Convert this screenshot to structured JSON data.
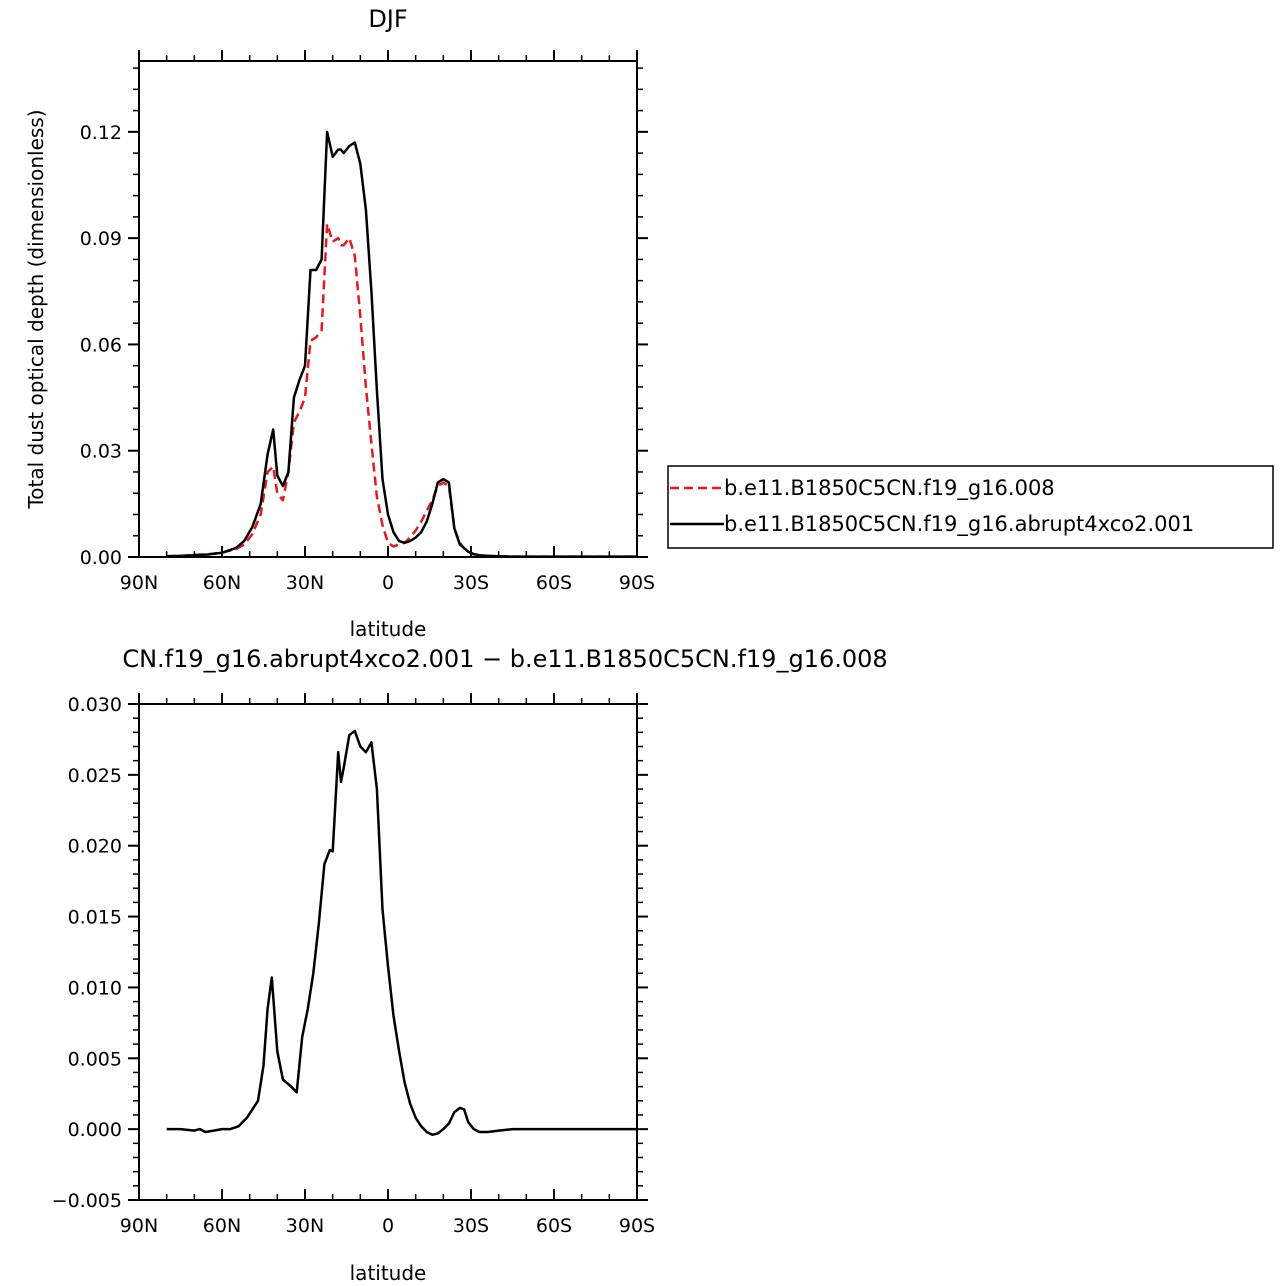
{
  "chart_data": [
    {
      "type": "line",
      "title": "DJF",
      "xlabel": "latitude",
      "ylabel": "Total dust optical depth (dimensionless)",
      "xlim": [
        90,
        -90
      ],
      "ylim": [
        0,
        0.14
      ],
      "x_ticks": [
        90,
        60,
        30,
        0,
        -30,
        -60,
        -90
      ],
      "x_tick_labels": [
        "90N",
        "60N",
        "30N",
        "0",
        "30S",
        "60S",
        "90S"
      ],
      "y_ticks": [
        0,
        0.03,
        0.06,
        0.09,
        0.12
      ],
      "y_tick_labels": [
        "0.00",
        "0.03",
        "0.06",
        "0.09",
        "0.12"
      ],
      "legend_position": "right",
      "grid": false,
      "series": [
        {
          "name": "b.e11.B1850C5CN.f19_g16.008",
          "color": "#e41a1c",
          "dash": "dashed",
          "x": [
            80,
            75,
            70,
            65,
            60,
            55,
            52,
            49,
            46,
            43.5,
            41.5,
            40,
            38,
            36,
            34,
            32,
            30,
            28,
            26,
            24,
            22,
            20,
            18,
            17,
            16,
            14,
            12,
            10,
            8,
            6,
            4,
            2,
            0,
            -2,
            -4,
            -6,
            -8,
            -10,
            -12,
            -14,
            -16,
            -18,
            -20,
            -22,
            -24,
            -26,
            -27.5,
            -29,
            -31,
            -33,
            -36,
            -40,
            -45,
            -50,
            -60,
            -70,
            -80,
            -90
          ],
          "y": [
            0.0002,
            0.0003,
            0.0006,
            0.0008,
            0.0012,
            0.0022,
            0.0035,
            0.0065,
            0.012,
            0.024,
            0.0255,
            0.018,
            0.016,
            0.024,
            0.038,
            0.041,
            0.045,
            0.061,
            0.062,
            0.064,
            0.094,
            0.089,
            0.09,
            0.088,
            0.088,
            0.09,
            0.085,
            0.068,
            0.048,
            0.032,
            0.017,
            0.009,
            0.004,
            0.003,
            0.0035,
            0.004,
            0.0055,
            0.0075,
            0.01,
            0.013,
            0.016,
            0.02,
            0.021,
            0.02,
            0.008,
            0.004,
            0.0025,
            0.0015,
            0.0008,
            0.0005,
            0.0003,
            0.0002,
            0.0001,
            0.0001,
            0.0001,
            0.0001,
            0.0001,
            0.0001
          ]
        },
        {
          "name": "b.e11.B1850C5CN.f19_g16.abrupt4xco2.001",
          "color": "#000000",
          "dash": "solid",
          "x": [
            80,
            75,
            70,
            65,
            60,
            55,
            52,
            49,
            46,
            43.5,
            41.5,
            40,
            38,
            36,
            34,
            32,
            30,
            28,
            26,
            24,
            22,
            20,
            18,
            17,
            16,
            14,
            12,
            10,
            8,
            6,
            4,
            2,
            0,
            -2,
            -4,
            -6,
            -8,
            -10,
            -12,
            -14,
            -16,
            -18,
            -20,
            -22,
            -24,
            -26,
            -27.5,
            -29,
            -31,
            -33,
            -36,
            -40,
            -45,
            -50,
            -60,
            -70,
            -80,
            -90
          ],
          "y": [
            0.0002,
            0.0003,
            0.0005,
            0.0007,
            0.0012,
            0.0025,
            0.0045,
            0.0085,
            0.015,
            0.029,
            0.036,
            0.023,
            0.02,
            0.024,
            0.045,
            0.05,
            0.054,
            0.081,
            0.081,
            0.084,
            0.12,
            0.113,
            0.115,
            0.115,
            0.114,
            0.116,
            0.117,
            0.111,
            0.098,
            0.075,
            0.047,
            0.022,
            0.012,
            0.007,
            0.0045,
            0.004,
            0.0045,
            0.0055,
            0.007,
            0.01,
            0.015,
            0.021,
            0.022,
            0.021,
            0.008,
            0.0035,
            0.0025,
            0.0015,
            0.0008,
            0.0005,
            0.0003,
            0.0002,
            0.0001,
            0.0001,
            0.0001,
            0.0001,
            0.0001,
            0.0001
          ]
        }
      ]
    },
    {
      "type": "line",
      "title": "CN.f19_g16.abrupt4xco2.001 − b.e11.B1850C5CN.f19_g16.008",
      "xlabel": "latitude",
      "xlim": [
        90,
        -90
      ],
      "ylim": [
        -0.005,
        0.03
      ],
      "x_ticks": [
        90,
        60,
        30,
        0,
        -30,
        -60,
        -90
      ],
      "x_tick_labels": [
        "90N",
        "60N",
        "30N",
        "0",
        "30S",
        "60S",
        "90S"
      ],
      "y_ticks": [
        -0.005,
        0,
        0.005,
        0.01,
        0.015,
        0.02,
        0.025,
        0.03
      ],
      "y_tick_labels": [
        "−0.005",
        "0.000",
        "0.005",
        "0.010",
        "0.015",
        "0.020",
        "0.025",
        "0.030"
      ],
      "grid": false,
      "series": [
        {
          "color": "#000000",
          "dash": "solid",
          "x": [
            80,
            75,
            70,
            68,
            66,
            63,
            60,
            57,
            54,
            51,
            49,
            47,
            45,
            43.5,
            42,
            40,
            38,
            35,
            33,
            31,
            29,
            27,
            25,
            23,
            21,
            20,
            18,
            17,
            16,
            14,
            12,
            10,
            8,
            6,
            4,
            2,
            0,
            -2,
            -4,
            -6,
            -8,
            -10,
            -12,
            -14,
            -16,
            -18,
            -20,
            -22,
            -24,
            -26,
            -27.5,
            -29,
            -31,
            -33,
            -36,
            -40,
            -45,
            -50,
            -60,
            -70,
            -80,
            -90
          ],
          "y": [
            0.0,
            0.0,
            -0.0001,
            0.0,
            -0.0002,
            -0.0001,
            0.0,
            0.0,
            0.0002,
            0.0008,
            0.0014,
            0.002,
            0.0045,
            0.0085,
            0.0107,
            0.0055,
            0.0035,
            0.003,
            0.0026,
            0.0065,
            0.0085,
            0.011,
            0.0145,
            0.0187,
            0.0197,
            0.0196,
            0.0266,
            0.0245,
            0.0255,
            0.0278,
            0.0281,
            0.027,
            0.0266,
            0.0273,
            0.024,
            0.0155,
            0.0115,
            0.008,
            0.0055,
            0.0033,
            0.0018,
            0.0008,
            0.0002,
            -0.0002,
            -0.0004,
            -0.0003,
            0.0,
            0.0004,
            0.0012,
            0.0015,
            0.0014,
            0.0005,
            0.0,
            -0.0002,
            -0.0002,
            -0.0001,
            0.0,
            0.0,
            0.0,
            0.0,
            0.0,
            0.0
          ]
        }
      ]
    }
  ]
}
